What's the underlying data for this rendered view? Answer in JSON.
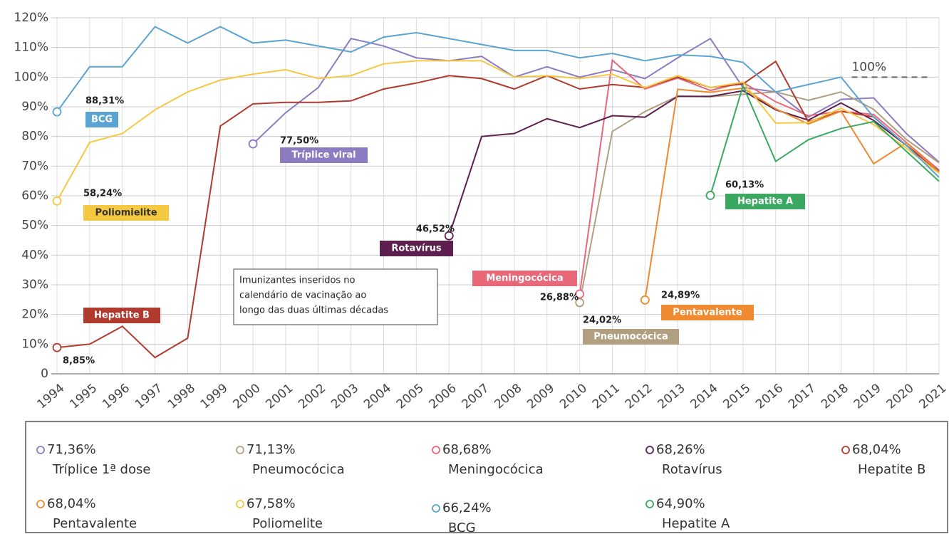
{
  "chart_data": {
    "type": "line",
    "categories": [
      "1994",
      "1995",
      "1996",
      "1997",
      "1998",
      "1999",
      "2000",
      "2001",
      "2002",
      "2003",
      "2004",
      "2005",
      "2006",
      "2007",
      "2008",
      "2009",
      "2010",
      "2011",
      "2012",
      "2013",
      "2014",
      "2015",
      "2016",
      "2017",
      "2018",
      "2019",
      "2020",
      "2021"
    ],
    "ylim": [
      0,
      120
    ],
    "yticks": [
      0,
      {
        "value": 10,
        "label": "10%"
      },
      {
        "value": 20,
        "label": "20%"
      },
      {
        "value": 30,
        "label": "30%"
      },
      {
        "value": 40,
        "label": "40%"
      },
      {
        "value": 50,
        "label": "50%"
      },
      {
        "value": 60,
        "label": "60%"
      },
      {
        "value": 70,
        "label": "70%"
      },
      {
        "value": 80,
        "label": "80%"
      },
      {
        "value": 90,
        "label": "90%"
      },
      {
        "value": 100,
        "label": "100%"
      },
      {
        "value": 110,
        "label": "110%"
      },
      {
        "value": 120,
        "label": "120%"
      }
    ],
    "grid": true,
    "reference": {
      "value": 100,
      "label": "100%"
    },
    "note": [
      "Imunizantes inseridos no",
      "calendário de vacinação ao",
      "longo das duas últimas décadas"
    ],
    "series": [
      {
        "name": "Tríplice 1ª dose",
        "tag": "Tríplice viral",
        "color": "#8c7bc0",
        "start_label": "77,50%",
        "end_label": "71,36%",
        "values": [
          null,
          null,
          null,
          null,
          null,
          null,
          77.5,
          88,
          96.5,
          113,
          110.5,
          106.5,
          105.5,
          107,
          100,
          103.5,
          100,
          102.5,
          99.5,
          106.5,
          113,
          96.5,
          95,
          86.5,
          92.5,
          93,
          81,
          71.36
        ]
      },
      {
        "name": "Pneumocócica",
        "tag": "Pneumocócica",
        "color": "#b0a080",
        "start_label": "24,02%",
        "end_label": "71,13%",
        "values": [
          null,
          null,
          null,
          null,
          null,
          null,
          null,
          null,
          null,
          null,
          null,
          null,
          null,
          null,
          null,
          null,
          24.02,
          81.7,
          88.4,
          93.6,
          93.4,
          94.2,
          95,
          92.2,
          95,
          89.1,
          79,
          71.13
        ]
      },
      {
        "name": "Meningocócica",
        "tag": "Meningocócica",
        "color": "#e8687a",
        "start_label": "26,88%",
        "end_label": "68,68%",
        "values": [
          null,
          null,
          null,
          null,
          null,
          null,
          null,
          null,
          null,
          null,
          null,
          null,
          null,
          null,
          null,
          null,
          26.88,
          105.7,
          96,
          99.7,
          95.5,
          98.2,
          91.7,
          87,
          88.5,
          87.4,
          78,
          68.68
        ]
      },
      {
        "name": "Rotavírus",
        "tag": "Rotavírus",
        "color": "#5c1f4e",
        "start_label": "46,52%",
        "end_label": "68,26%",
        "values": [
          null,
          null,
          null,
          null,
          null,
          null,
          null,
          null,
          null,
          null,
          null,
          null,
          46.52,
          80,
          81,
          86,
          83,
          87,
          86.5,
          93.5,
          93.5,
          95.4,
          89,
          85.5,
          91.3,
          85.4,
          77,
          68.26
        ]
      },
      {
        "name": "Hepatite B",
        "tag": "Hepatite B",
        "color": "#b03a2e",
        "start_label": "8,85%",
        "end_label": "68,04%",
        "values": [
          8.85,
          10,
          16,
          5.5,
          12,
          83.5,
          91,
          91.5,
          91.5,
          92,
          96,
          98,
          100.5,
          99.5,
          96,
          100.5,
          96,
          97.5,
          96.5,
          100,
          96.5,
          97.7,
          105.3,
          85,
          88.5,
          86.6,
          77,
          68.04
        ]
      },
      {
        "name": "Pentavalente",
        "tag": "Pentavalente",
        "color": "#f08a30",
        "start_label": "24,89%",
        "end_label": "68,04%",
        "values": [
          null,
          null,
          null,
          null,
          null,
          null,
          null,
          null,
          null,
          null,
          null,
          null,
          null,
          null,
          null,
          null,
          null,
          null,
          24.89,
          95.9,
          94.9,
          96.3,
          89.3,
          84.2,
          88.5,
          70.8,
          77.9,
          68.04
        ]
      },
      {
        "name": "Poliomelite",
        "tag": "Poliomielite",
        "color": "#f5c842",
        "start_label": "58,24%",
        "end_label": "67,58%",
        "values": [
          58.24,
          78,
          81,
          89,
          95,
          99,
          101,
          102.5,
          99.5,
          100.5,
          104.5,
          105.5,
          105.5,
          105.5,
          100,
          100.5,
          99.5,
          101,
          96.5,
          100.5,
          96.5,
          98.3,
          84.5,
          84.7,
          89.5,
          84,
          76,
          67.58
        ]
      },
      {
        "name": "BCG",
        "tag": "BCG",
        "color": "#5ba3d0",
        "start_label": "88,31%",
        "end_label": "66,24%",
        "values": [
          88.31,
          103.5,
          103.5,
          117,
          111.5,
          117,
          111.5,
          112.5,
          110.5,
          108.5,
          113.5,
          115,
          113,
          111,
          109,
          109,
          106.5,
          108,
          105.5,
          107.5,
          107,
          105,
          95,
          97.5,
          100,
          86.5,
          77,
          66.24
        ]
      },
      {
        "name": "Hepatite A",
        "tag": "Hepatite A",
        "color": "#3aa860",
        "start_label": "60,13%",
        "end_label": "64,90%",
        "values": [
          null,
          null,
          null,
          null,
          null,
          null,
          null,
          null,
          null,
          null,
          null,
          null,
          null,
          null,
          null,
          null,
          null,
          null,
          null,
          null,
          60.13,
          97.1,
          71.6,
          78.9,
          82.7,
          85,
          75,
          64.9
        ]
      }
    ]
  }
}
